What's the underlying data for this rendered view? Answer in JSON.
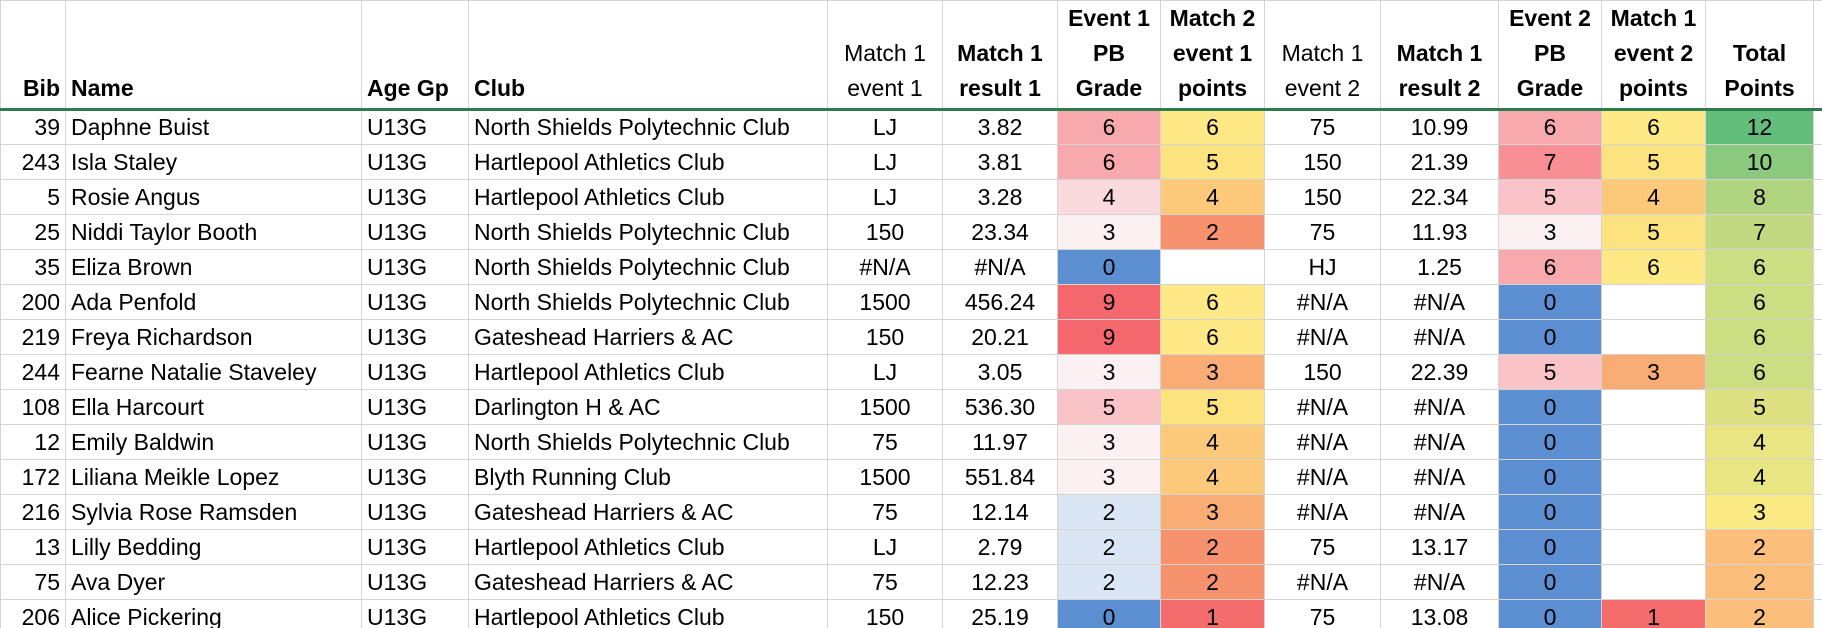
{
  "headers": [
    {
      "text": "Bib",
      "align": "r",
      "bold": true
    },
    {
      "text": "Name",
      "align": "l",
      "bold": true
    },
    {
      "text": "Age Gp",
      "align": "l",
      "bold": true
    },
    {
      "text": "Club",
      "align": "l",
      "bold": true
    },
    {
      "text": "Match 1\nevent 1",
      "align": "c",
      "bold": false
    },
    {
      "text": "Match 1\nresult 1",
      "align": "c",
      "bold": true
    },
    {
      "text": "Event 1\nPB\nGrade",
      "align": "c",
      "bold": true
    },
    {
      "text": "Match 2\nevent 1\npoints",
      "align": "c",
      "bold": true
    },
    {
      "text": "Match 1\nevent 2",
      "align": "c",
      "bold": false
    },
    {
      "text": "Match 1\nresult 2",
      "align": "c",
      "bold": true
    },
    {
      "text": "Event 2\nPB\nGrade",
      "align": "c",
      "bold": true
    },
    {
      "text": "Match 1\nevent 2\npoints",
      "align": "c",
      "bold": true
    },
    {
      "text": "Total\nPoints",
      "align": "c",
      "bold": true
    }
  ],
  "rows": [
    {
      "bib": "39",
      "name": "Daphne Buist",
      "age": "U13G",
      "club": "North Shields Polytechnic Club",
      "e1": "LJ",
      "r1": "3.82",
      "pb1": "6",
      "p1": "6",
      "e2": "75",
      "r2": "10.99",
      "pb2": "6",
      "p2": "6",
      "total": "12"
    },
    {
      "bib": "243",
      "name": "Isla Staley",
      "age": "U13G",
      "club": "Hartlepool Athletics Club",
      "e1": "LJ",
      "r1": "3.81",
      "pb1": "6",
      "p1": "5",
      "e2": "150",
      "r2": "21.39",
      "pb2": "7",
      "p2": "5",
      "total": "10"
    },
    {
      "bib": "5",
      "name": "Rosie Angus",
      "age": "U13G",
      "club": "Hartlepool Athletics Club",
      "e1": "LJ",
      "r1": "3.28",
      "pb1": "4",
      "p1": "4",
      "e2": "150",
      "r2": "22.34",
      "pb2": "5",
      "p2": "4",
      "total": "8"
    },
    {
      "bib": "25",
      "name": "Niddi Taylor Booth",
      "age": "U13G",
      "club": "North Shields Polytechnic Club",
      "e1": "150",
      "r1": "23.34",
      "pb1": "3",
      "p1": "2",
      "e2": "75",
      "r2": "11.93",
      "pb2": "3",
      "p2": "5",
      "total": "7"
    },
    {
      "bib": "35",
      "name": "Eliza Brown",
      "age": "U13G",
      "club": "North Shields Polytechnic Club",
      "e1": "#N/A",
      "r1": "#N/A",
      "pb1": "0",
      "p1": "",
      "e2": "HJ",
      "r2": "1.25",
      "pb2": "6",
      "p2": "6",
      "total": "6"
    },
    {
      "bib": "200",
      "name": "Ada Penfold",
      "age": "U13G",
      "club": "North Shields Polytechnic Club",
      "e1": "1500",
      "r1": "456.24",
      "pb1": "9",
      "p1": "6",
      "e2": "#N/A",
      "r2": "#N/A",
      "pb2": "0",
      "p2": "",
      "total": "6"
    },
    {
      "bib": "219",
      "name": "Freya Richardson",
      "age": "U13G",
      "club": "Gateshead Harriers & AC",
      "e1": "150",
      "r1": "20.21",
      "pb1": "9",
      "p1": "6",
      "e2": "#N/A",
      "r2": "#N/A",
      "pb2": "0",
      "p2": "",
      "total": "6"
    },
    {
      "bib": "244",
      "name": "Fearne Natalie Staveley",
      "age": "U13G",
      "club": "Hartlepool Athletics Club",
      "e1": "LJ",
      "r1": "3.05",
      "pb1": "3",
      "p1": "3",
      "e2": "150",
      "r2": "22.39",
      "pb2": "5",
      "p2": "3",
      "total": "6"
    },
    {
      "bib": "108",
      "name": "Ella Harcourt",
      "age": "U13G",
      "club": "Darlington H & AC",
      "e1": "1500",
      "r1": "536.30",
      "pb1": "5",
      "p1": "5",
      "e2": "#N/A",
      "r2": "#N/A",
      "pb2": "0",
      "p2": "",
      "total": "5"
    },
    {
      "bib": "12",
      "name": "Emily Baldwin",
      "age": "U13G",
      "club": "North Shields Polytechnic Club",
      "e1": "75",
      "r1": "11.97",
      "pb1": "3",
      "p1": "4",
      "e2": "#N/A",
      "r2": "#N/A",
      "pb2": "0",
      "p2": "",
      "total": "4"
    },
    {
      "bib": "172",
      "name": "Liliana Meikle Lopez",
      "age": "U13G",
      "club": "Blyth Running Club",
      "e1": "1500",
      "r1": "551.84",
      "pb1": "3",
      "p1": "4",
      "e2": "#N/A",
      "r2": "#N/A",
      "pb2": "0",
      "p2": "",
      "total": "4"
    },
    {
      "bib": "216",
      "name": "Sylvia Rose Ramsden",
      "age": "U13G",
      "club": "Gateshead Harriers & AC",
      "e1": "75",
      "r1": "12.14",
      "pb1": "2",
      "p1": "3",
      "e2": "#N/A",
      "r2": "#N/A",
      "pb2": "0",
      "p2": "",
      "total": "3"
    },
    {
      "bib": "13",
      "name": "Lilly Bedding",
      "age": "U13G",
      "club": "Hartlepool Athletics Club",
      "e1": "LJ",
      "r1": "2.79",
      "pb1": "2",
      "p1": "2",
      "e2": "75",
      "r2": "13.17",
      "pb2": "0",
      "p2": "",
      "total": "2"
    },
    {
      "bib": "75",
      "name": "Ava Dyer",
      "age": "U13G",
      "club": "Gateshead Harriers & AC",
      "e1": "75",
      "r1": "12.23",
      "pb1": "2",
      "p1": "2",
      "e2": "#N/A",
      "r2": "#N/A",
      "pb2": "0",
      "p2": "",
      "total": "2"
    },
    {
      "bib": "206",
      "name": "Alice Pickering",
      "age": "U13G",
      "club": "Hartlepool Athletics Club",
      "e1": "150",
      "r1": "25.19",
      "pb1": "0",
      "p1": "1",
      "e2": "75",
      "r2": "13.08",
      "pb2": "0",
      "p2": "1",
      "total": "2"
    }
  ],
  "colors": {
    "header_rule": "#2f7a4f",
    "grid": "#d4d4d4",
    "pb_scale": {
      "0": "#5b8fd1",
      "2": "#dbe6f5",
      "3": "#fcf1f2",
      "4": "#fbdadd",
      "5": "#f9c3c8",
      "6": "#f8a9ae",
      "7": "#f78f95",
      "9": "#f4686d"
    },
    "points_scale": {
      "1": "#f46c6c",
      "2": "#f7926f",
      "3": "#f9ad74",
      "4": "#fbc979",
      "5": "#fde37f",
      "6": "#fee986"
    },
    "total_scale": {
      "12": "#63be7b",
      "10": "#8ac97e",
      "8": "#b1d480",
      "7": "#c2d981",
      "6": "#cddd81",
      "5": "#dde182",
      "4": "#e9e583",
      "3": "#fbe983",
      "2": "#fbbf7b"
    }
  }
}
